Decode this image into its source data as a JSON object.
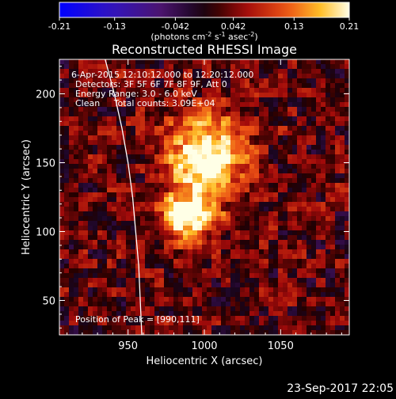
{
  "chart_data": {
    "type": "heatmap",
    "title": "Reconstructed RHESSI Image",
    "xlabel": "Heliocentric X (arcsec)",
    "ylabel": "Heliocentric Y (arcsec)",
    "xlim": [
      905,
      1095
    ],
    "ylim": [
      25,
      225
    ],
    "xticks": [
      950,
      1000,
      1050
    ],
    "yticks": [
      50,
      100,
      150,
      200
    ],
    "colorbar": {
      "range": [
        -0.21,
        0.21
      ],
      "ticks": [
        -0.21,
        -0.13,
        -0.042,
        0.042,
        0.13,
        0.21
      ],
      "tick_labels": [
        "-0.21",
        "-0.13",
        "-0.042",
        "0.042",
        "0.13",
        "0.21"
      ],
      "unit_main": "(photons cm",
      "unit_exp1": "-2",
      "unit_mid1": " s",
      "unit_exp2": "-1",
      "unit_mid2": " asec",
      "unit_exp3": "-2",
      "unit_end": ")"
    },
    "annotations": [
      "6-Apr-2015 12:10:12.000 to 12:20:12.000",
      "Detectors: 3F 5F 6F 7F 8F 9F, Att 0",
      "Energy Range: 3.0 - 6.0 keV",
      "Clean     Total counts: 3.09E+04"
    ],
    "peak_label": "Position of Peak = [990,111]",
    "peak": [
      990,
      111
    ],
    "sources": [
      {
        "x": 990,
        "y": 111,
        "amp": 0.21,
        "sigma": 13
      },
      {
        "x": 1000,
        "y": 150,
        "amp": 0.15,
        "sigma": 17
      },
      {
        "x": 1003,
        "y": 165,
        "amp": 0.08,
        "sigma": 22
      }
    ],
    "limb": [
      [
        935,
        225
      ],
      [
        941,
        200
      ],
      [
        946,
        175
      ],
      [
        950,
        150
      ],
      [
        953,
        125
      ],
      [
        955,
        100
      ],
      [
        957,
        75
      ],
      [
        958,
        50
      ],
      [
        959,
        25
      ]
    ]
  },
  "footer": {
    "date": "23-Sep-2017 22:05"
  }
}
